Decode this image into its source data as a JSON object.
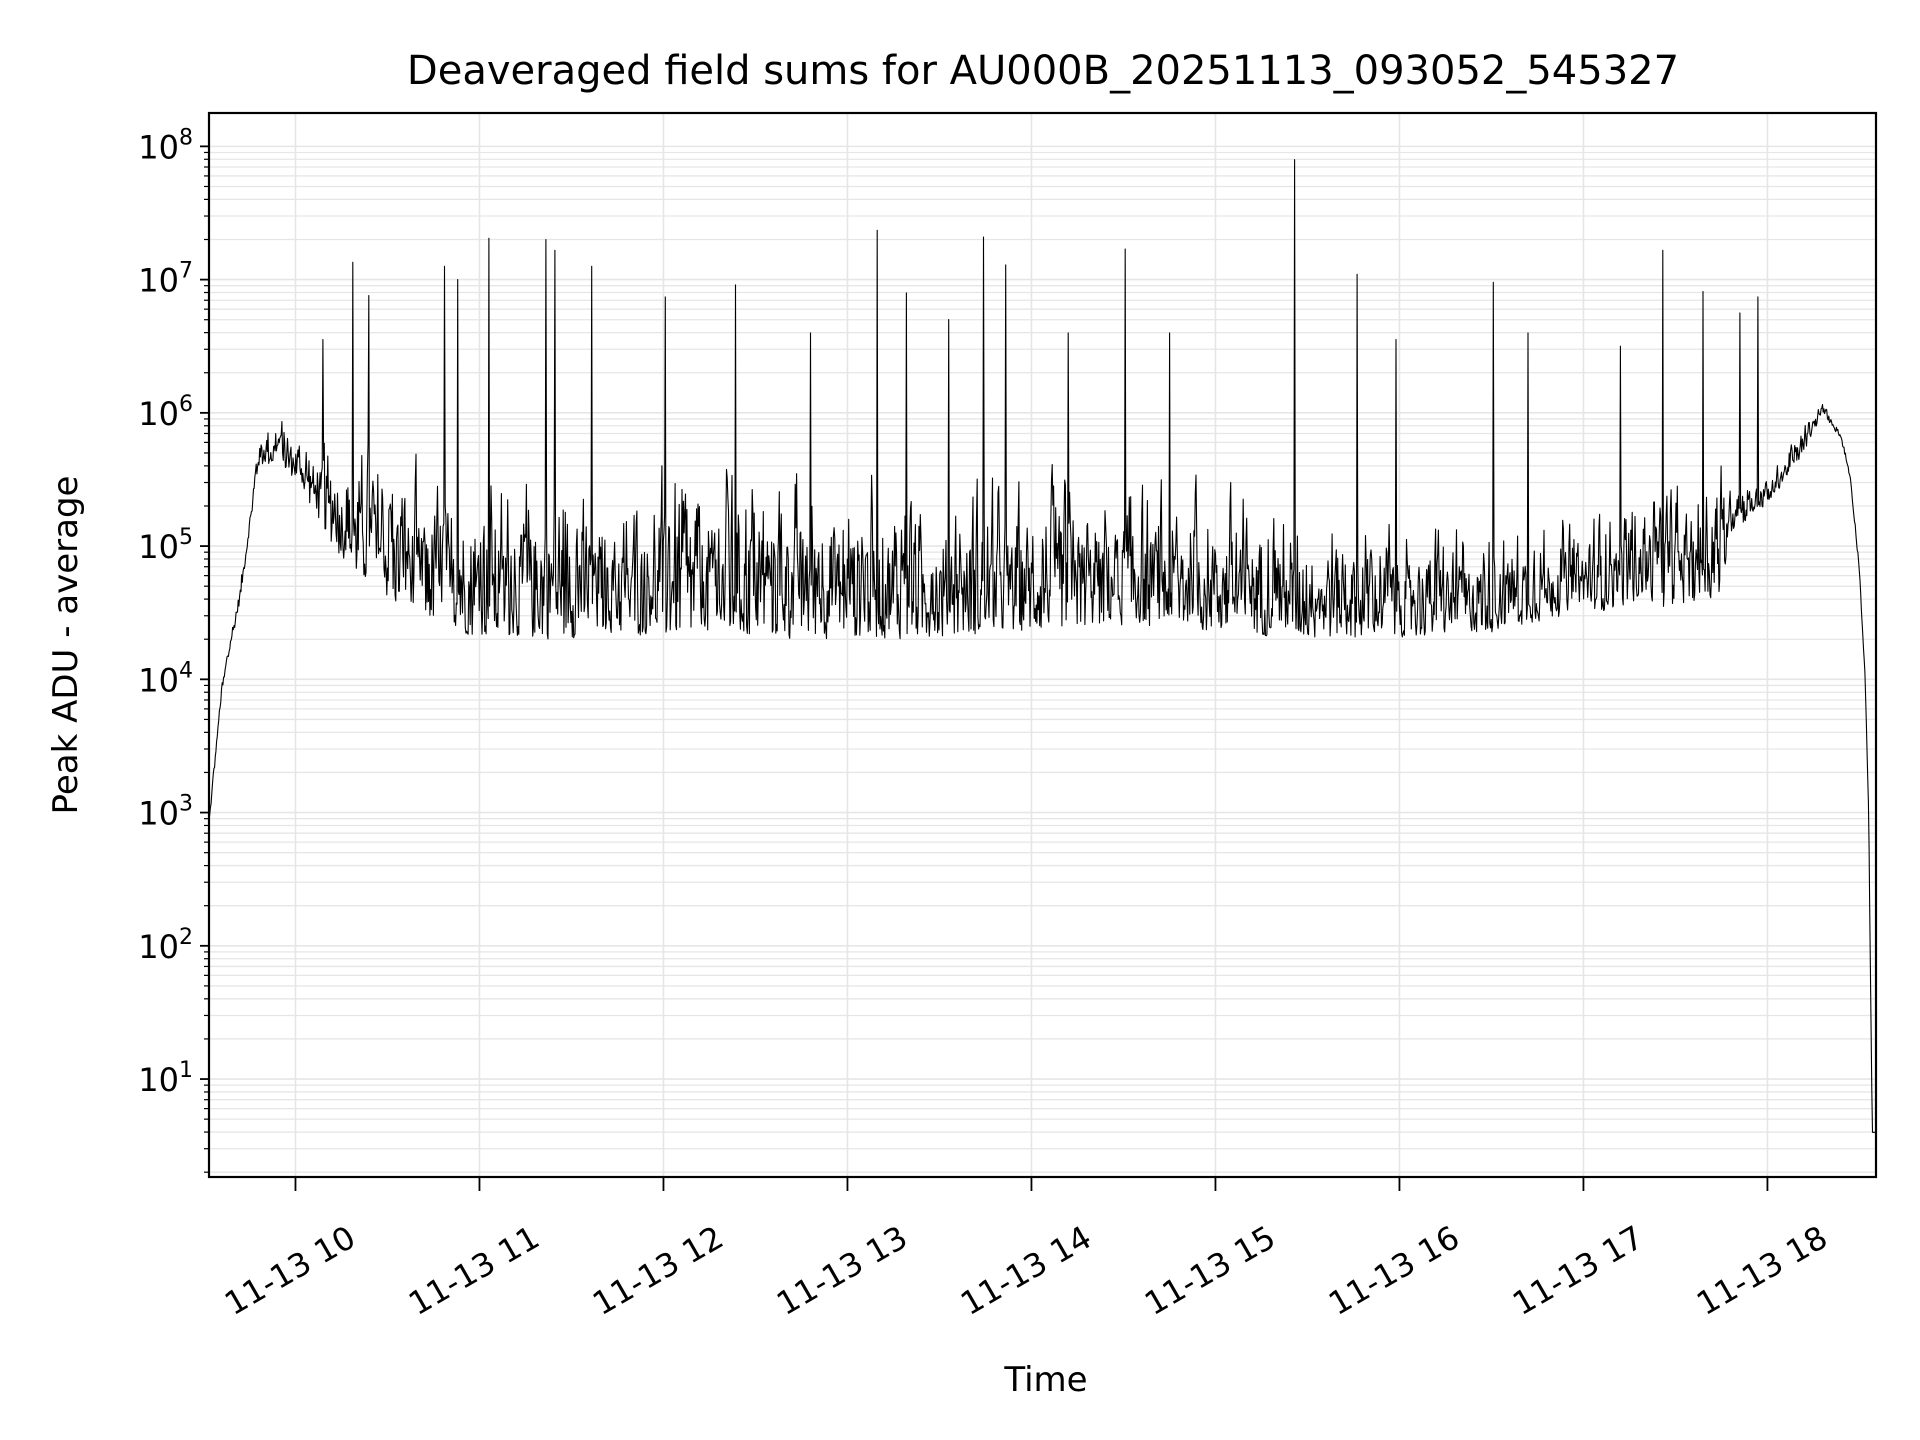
{
  "chart_data": {
    "type": "line",
    "title": "Deaveraged field sums for AU000B_20251113_093052_545327",
    "xlabel": "Time",
    "ylabel": "Peak ADU - average",
    "yscale": "log",
    "xlim_hours": [
      9.53,
      18.59
    ],
    "ylim": [
      1.84,
      178000000
    ],
    "grid": true,
    "line_color": "#000000",
    "grid_color": "#e6e6e6",
    "xticks": [
      {
        "hour": 10,
        "label": "11-13 10"
      },
      {
        "hour": 11,
        "label": "11-13 11"
      },
      {
        "hour": 12,
        "label": "11-13 12"
      },
      {
        "hour": 13,
        "label": "11-13 13"
      },
      {
        "hour": 14,
        "label": "11-13 14"
      },
      {
        "hour": 15,
        "label": "11-13 15"
      },
      {
        "hour": 16,
        "label": "11-13 16"
      },
      {
        "hour": 17,
        "label": "11-13 17"
      },
      {
        "hour": 18,
        "label": "11-13 18"
      }
    ],
    "yticks": [
      {
        "exp": 1,
        "base": "10",
        "sup": "1"
      },
      {
        "exp": 2,
        "base": "10",
        "sup": "2"
      },
      {
        "exp": 3,
        "base": "10",
        "sup": "3"
      },
      {
        "exp": 4,
        "base": "10",
        "sup": "4"
      },
      {
        "exp": 5,
        "base": "10",
        "sup": "5"
      },
      {
        "exp": 6,
        "base": "10",
        "sup": "6"
      },
      {
        "exp": 7,
        "base": "10",
        "sup": "7"
      },
      {
        "exp": 8,
        "base": "10",
        "sup": "8"
      }
    ],
    "envelope_log10": [
      [
        9.53,
        2.9,
        3.0
      ],
      [
        9.6,
        3.9,
        4.0
      ],
      [
        9.7,
        4.6,
        4.8
      ],
      [
        9.8,
        5.6,
        5.9
      ],
      [
        9.9,
        5.6,
        6.15
      ],
      [
        10.0,
        5.5,
        6.0
      ],
      [
        10.2,
        5.0,
        6.0
      ],
      [
        10.3,
        4.8,
        6.1
      ],
      [
        10.6,
        4.5,
        6.0
      ],
      [
        10.8,
        4.4,
        5.8
      ],
      [
        11.0,
        4.3,
        5.9
      ],
      [
        11.5,
        4.3,
        6.0
      ],
      [
        11.7,
        4.35,
        5.5
      ],
      [
        12.0,
        4.3,
        6.0
      ],
      [
        12.5,
        4.3,
        6.0
      ],
      [
        13.0,
        4.3,
        6.0
      ],
      [
        13.5,
        4.3,
        5.9
      ],
      [
        14.0,
        4.35,
        5.8
      ],
      [
        14.5,
        4.4,
        5.8
      ],
      [
        15.0,
        4.35,
        5.8
      ],
      [
        15.5,
        4.3,
        5.6
      ],
      [
        16.0,
        4.3,
        5.5
      ],
      [
        16.5,
        4.35,
        5.4
      ],
      [
        17.0,
        4.5,
        5.5
      ],
      [
        17.5,
        4.55,
        5.8
      ],
      [
        17.75,
        4.6,
        6.0
      ],
      [
        17.8,
        5.1,
        5.8
      ],
      [
        18.0,
        5.3,
        5.6
      ],
      [
        18.2,
        5.7,
        6.0
      ],
      [
        18.3,
        6.0,
        6.1
      ],
      [
        18.4,
        5.8,
        5.9
      ],
      [
        18.45,
        5.5,
        5.6
      ],
      [
        18.5,
        4.8,
        4.9
      ],
      [
        18.53,
        4.0,
        4.1
      ],
      [
        18.55,
        3.0,
        3.0
      ],
      [
        18.57,
        0.6,
        0.6
      ],
      [
        18.59,
        0.6,
        0.6
      ]
    ],
    "spikes_log10": [
      [
        10.31,
        7.13
      ],
      [
        10.4,
        6.88
      ],
      [
        10.81,
        7.1
      ],
      [
        10.88,
        7.0
      ],
      [
        11.05,
        7.31
      ],
      [
        11.36,
        7.3
      ],
      [
        11.41,
        7.22
      ],
      [
        11.61,
        7.1
      ],
      [
        12.01,
        6.87
      ],
      [
        12.39,
        6.96
      ],
      [
        13.16,
        7.37
      ],
      [
        13.32,
        6.9
      ],
      [
        13.74,
        7.32
      ],
      [
        13.86,
        7.11
      ],
      [
        14.51,
        7.23
      ],
      [
        15.43,
        7.9
      ],
      [
        15.77,
        7.04
      ],
      [
        16.51,
        6.98
      ],
      [
        17.43,
        7.22
      ],
      [
        17.65,
        6.91
      ],
      [
        17.95,
        6.87
      ],
      [
        10.15,
        6.55
      ],
      [
        12.8,
        6.6
      ],
      [
        13.55,
        6.7
      ],
      [
        14.2,
        6.6
      ],
      [
        14.75,
        6.6
      ],
      [
        15.98,
        6.55
      ],
      [
        16.7,
        6.6
      ],
      [
        17.2,
        6.5
      ],
      [
        17.85,
        6.75
      ]
    ]
  }
}
